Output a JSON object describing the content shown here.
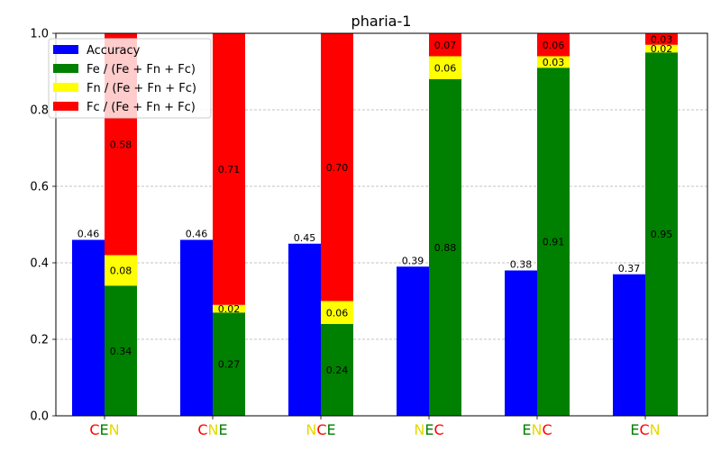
{
  "chart_data": {
    "type": "bar",
    "title": "pharia-1",
    "xlabel": "",
    "ylabel": "",
    "ylim": [
      0,
      1.0
    ],
    "yticks": [
      "0.0",
      "0.2",
      "0.4",
      "0.6",
      "0.8",
      "1.0"
    ],
    "grid": "horizontal dashed",
    "legend_position": "top-left",
    "categories": [
      [
        {
          "t": "C",
          "c": "#ff0000"
        },
        {
          "t": "E",
          "c": "#008000"
        },
        {
          "t": "N",
          "c": "#e6d800"
        }
      ],
      [
        {
          "t": "C",
          "c": "#ff0000"
        },
        {
          "t": "N",
          "c": "#e6d800"
        },
        {
          "t": "E",
          "c": "#008000"
        }
      ],
      [
        {
          "t": "N",
          "c": "#e6d800"
        },
        {
          "t": "C",
          "c": "#ff0000"
        },
        {
          "t": "E",
          "c": "#008000"
        }
      ],
      [
        {
          "t": "N",
          "c": "#e6d800"
        },
        {
          "t": "E",
          "c": "#008000"
        },
        {
          "t": "C",
          "c": "#ff0000"
        }
      ],
      [
        {
          "t": "E",
          "c": "#008000"
        },
        {
          "t": "N",
          "c": "#e6d800"
        },
        {
          "t": "C",
          "c": "#ff0000"
        }
      ],
      [
        {
          "t": "E",
          "c": "#008000"
        },
        {
          "t": "C",
          "c": "#ff0000"
        },
        {
          "t": "N",
          "c": "#e6d800"
        }
      ]
    ],
    "series": [
      {
        "name": "Accuracy",
        "color": "#0000ff",
        "values": [
          0.46,
          0.46,
          0.45,
          0.39,
          0.38,
          0.37
        ],
        "labels": [
          "0.46",
          "0.46",
          "0.45",
          "0.39",
          "0.38",
          "0.37"
        ]
      },
      {
        "name": "Fe / (Fe + Fn + Fc)",
        "color": "#008000",
        "values": [
          0.34,
          0.27,
          0.24,
          0.88,
          0.91,
          0.95
        ],
        "labels": [
          "0.34",
          "0.27",
          "0.24",
          "0.88",
          "0.91",
          "0.95"
        ]
      },
      {
        "name": "Fn / (Fe + Fn + Fc)",
        "color": "#ffff00",
        "values": [
          0.08,
          0.02,
          0.06,
          0.06,
          0.03,
          0.02
        ],
        "labels": [
          "0.08",
          "0.02",
          "0.06",
          "0.06",
          "0.03",
          "0.02"
        ]
      },
      {
        "name": "Fc / (Fe + Fn + Fc)",
        "color": "#ff0000",
        "values": [
          0.58,
          0.71,
          0.7,
          0.07,
          0.06,
          0.03
        ],
        "labels": [
          "0.58",
          "0.71",
          "0.70",
          "0.07",
          "0.06",
          "0.03"
        ]
      }
    ],
    "legend_highlight": "#ffcccc"
  }
}
